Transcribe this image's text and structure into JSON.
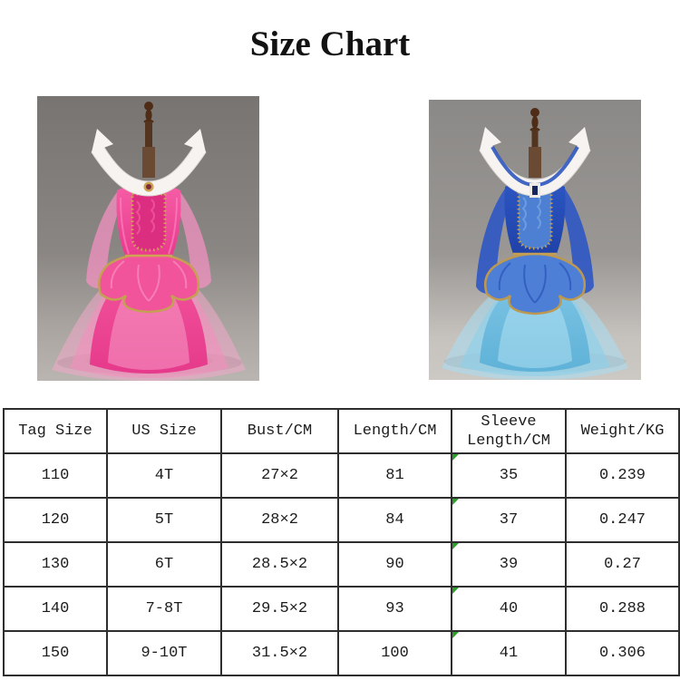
{
  "title": "Size Chart",
  "photos": {
    "left": {
      "description": "Pink princess ball-gown dress with sheer long sleeves, gold trim, dark-pink brocade bodice panel, white pointed collar and wide tulle train, displayed on a wooden mannequin stand against a gray studio background"
    },
    "right": {
      "description": "Royal-blue princess dress with light-blue tulle skirt, blue brocade bodice panel edged in gold, white pointed collar with blue band and dark pendant, displayed on a wooden mannequin stand against a light gray studio background"
    }
  },
  "table": {
    "headers": [
      "Tag Size",
      "US Size",
      "Bust/CM",
      "Length/CM",
      "Sleeve Length/CM",
      "Weight/KG"
    ],
    "rows": [
      [
        "110",
        "4T",
        "27×2",
        "81",
        "35",
        "0.239"
      ],
      [
        "120",
        "5T",
        "28×2",
        "84",
        "37",
        "0.247"
      ],
      [
        "130",
        "6T",
        "28.5×2",
        "90",
        "39",
        "0.27"
      ],
      [
        "140",
        "7-8T",
        "29.5×2",
        "93",
        "40",
        "0.288"
      ],
      [
        "150",
        "9-10T",
        "31.5×2",
        "100",
        "41",
        "0.306"
      ]
    ],
    "green_marker": {
      "column_index": 4
    }
  },
  "colors": {
    "text": "#1c1c1c",
    "table_border": "#2e2e2e",
    "marker_green": "#2f9e2f",
    "pink_main": "#ee4694",
    "pink_dark_panel": "#dc2e80",
    "pink_tulle": "#f2aacb",
    "blue_main": "#2a52c0",
    "blue_panel": "#4d7fd2",
    "blue_skirt": "#7cc4e4",
    "blue_tulle": "#aadcf0",
    "gold_trim": "#c59f52",
    "collar_white": "#f6f3f0",
    "mannequin_wood": "#4e2c15",
    "photo_left_bg_top": "#787472",
    "photo_left_bg_bottom": "#bab5b1",
    "photo_right_bg_top": "#8b8987",
    "photo_right_bg_bottom": "#ccc8c4"
  }
}
